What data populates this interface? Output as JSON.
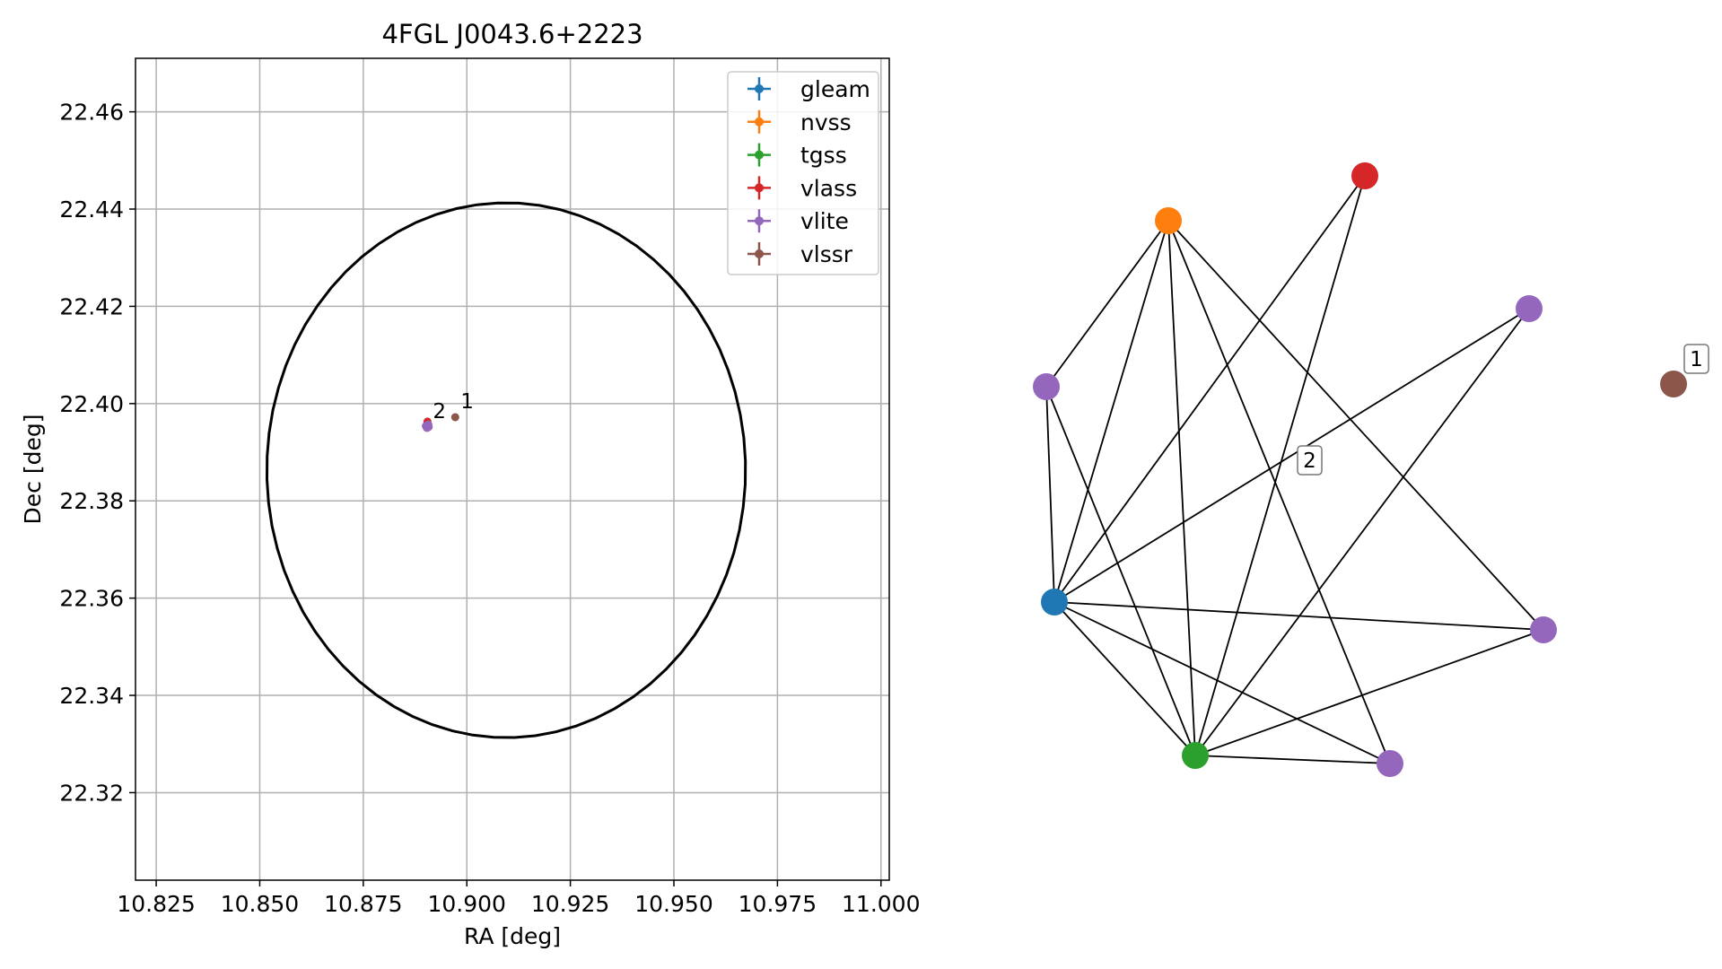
{
  "chart_data": [
    {
      "type": "scatter",
      "title": "4FGL J0043.6+2223",
      "xlabel": "RA [deg]",
      "ylabel": "Dec [deg]",
      "xlim": [
        10.82,
        11.002
      ],
      "ylim": [
        22.302,
        22.471
      ],
      "xticks": [
        "10.825",
        "10.850",
        "10.875",
        "10.900",
        "10.925",
        "10.950",
        "10.975",
        "11.000"
      ],
      "yticks": [
        "22.32",
        "22.34",
        "22.36",
        "22.38",
        "22.40",
        "22.42",
        "22.44",
        "22.46"
      ],
      "grid": true,
      "legend_placement": "top-right",
      "series": [
        {
          "name": "gleam",
          "color": "#1f77b4",
          "points": [
            [
              10.8905,
              22.3953
            ]
          ]
        },
        {
          "name": "nvss",
          "color": "#ff7f0e",
          "points": [
            [
              10.8905,
              22.3955
            ]
          ]
        },
        {
          "name": "tgss",
          "color": "#2ca02c",
          "points": [
            [
              10.8905,
              22.3954
            ]
          ]
        },
        {
          "name": "vlass",
          "color": "#d62728",
          "points": [
            [
              10.8905,
              22.3963
            ]
          ]
        },
        {
          "name": "vlite",
          "color": "#9467bd",
          "points": [
            [
              10.8903,
              22.3951
            ],
            [
              10.8907,
              22.3957
            ],
            [
              10.8901,
              22.3954
            ],
            [
              10.8908,
              22.3952
            ],
            [
              10.8904,
              22.395
            ]
          ]
        },
        {
          "name": "vlssr",
          "color": "#8c564b",
          "points": [
            [
              10.8972,
              22.3972
            ]
          ]
        }
      ],
      "ellipse": {
        "center": [
          10.9095,
          22.3863
        ],
        "half_width": 0.0578,
        "half_height": 0.055,
        "tilt_deg": -8
      },
      "annotations": [
        {
          "text": "1",
          "x": 10.8985,
          "y": 22.399
        },
        {
          "text": "2",
          "x": 10.8918,
          "y": 22.397
        }
      ]
    },
    {
      "type": "network",
      "nodes": [
        {
          "id": "nvss",
          "color": "#ff7f0e"
        },
        {
          "id": "vlass",
          "color": "#d62728"
        },
        {
          "id": "vlite_a",
          "color": "#9467bd"
        },
        {
          "id": "vlite_b",
          "color": "#9467bd"
        },
        {
          "id": "vlssr",
          "color": "#8c564b"
        },
        {
          "id": "gleam",
          "color": "#1f77b4"
        },
        {
          "id": "vlite_c",
          "color": "#9467bd"
        },
        {
          "id": "tgss",
          "color": "#2ca02c"
        },
        {
          "id": "vlite_d",
          "color": "#9467bd"
        }
      ],
      "edges": [
        [
          "nvss",
          "vlite_b"
        ],
        [
          "nvss",
          "gleam"
        ],
        [
          "nvss",
          "tgss"
        ],
        [
          "nvss",
          "vlite_d"
        ],
        [
          "nvss",
          "vlite_c"
        ],
        [
          "vlass",
          "gleam"
        ],
        [
          "vlass",
          "tgss"
        ],
        [
          "vlite_a",
          "gleam"
        ],
        [
          "vlite_a",
          "tgss"
        ],
        [
          "vlite_b",
          "gleam"
        ],
        [
          "vlite_b",
          "tgss"
        ],
        [
          "gleam",
          "vlite_c"
        ],
        [
          "gleam",
          "tgss"
        ],
        [
          "gleam",
          "vlite_d"
        ],
        [
          "tgss",
          "vlite_c"
        ],
        [
          "tgss",
          "vlite_d"
        ]
      ],
      "labels": [
        {
          "text": "1",
          "near": "vlssr"
        },
        {
          "text": "2",
          "near": "center"
        }
      ]
    }
  ]
}
